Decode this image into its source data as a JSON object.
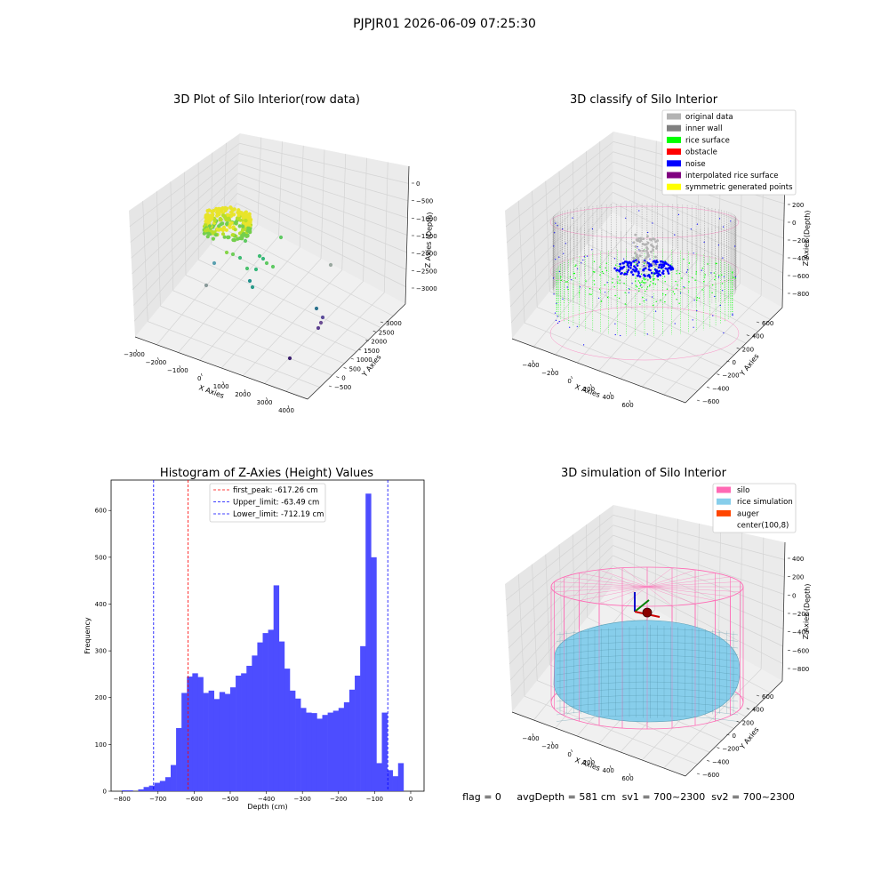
{
  "suptitle": "PJPJR01 2026-06-09 07:25:30",
  "footer": "flag = 0     avgDepth = 581 cm  sv1 = 700~2300  sv2 = 700~2300",
  "panels": {
    "raw": {
      "title": "3D Plot of Silo Interior(row data)",
      "xlabel": "X Axies",
      "ylabel": "Y Axies",
      "zlabel": "Z Axies (Depth)",
      "xticks": [
        "−3000",
        "−2000",
        "−1000",
        "0",
        "1000",
        "2000",
        "3000",
        "4000"
      ],
      "yticks": [
        "−500",
        "0",
        "500",
        "1000",
        "1500",
        "2000",
        "2500",
        "3000"
      ],
      "zticks": [
        "0",
        "−500",
        "−1000",
        "−1500",
        "−2000",
        "−2500",
        "−3000"
      ]
    },
    "classify": {
      "title": "3D classify of Silo Interior",
      "xlabel": "X Axies",
      "ylabel": "Y Axies",
      "zlabel": "Z Axies (Depth)",
      "xticks": [
        "−400",
        "−200",
        "0",
        "200",
        "400",
        "600"
      ],
      "yticks": [
        "−600",
        "−400",
        "−200",
        "0",
        "200",
        "400",
        "600"
      ],
      "zticks": [
        "200",
        "0",
        "−200",
        "−400",
        "−600",
        "−800"
      ],
      "legend": [
        {
          "label": "original data",
          "color": "#b3b3b3"
        },
        {
          "label": "inner wall",
          "color": "#808080"
        },
        {
          "label": "rice surface",
          "color": "#00ff00"
        },
        {
          "label": "obstacle",
          "color": "#ff0000"
        },
        {
          "label": "noise",
          "color": "#0000ff"
        },
        {
          "label": "interpolated rice surface",
          "color": "#800080"
        },
        {
          "label": "symmetric generated points",
          "color": "#ffff00"
        }
      ],
      "colors": {
        "wall": "#808080",
        "rice": "#00ff00",
        "noise": "#0000ff",
        "silo": "#ff69b4"
      }
    },
    "simulation": {
      "title": "3D simulation of Silo Interior",
      "xlabel": "X Axies",
      "ylabel": "Y Axies",
      "zlabel": "Z Axies (Depth)",
      "xticks": [
        "−400",
        "−200",
        "0",
        "200",
        "400",
        "600"
      ],
      "yticks": [
        "−600",
        "−400",
        "−200",
        "0",
        "200",
        "400",
        "600"
      ],
      "zticks": [
        "400",
        "200",
        "0",
        "−200",
        "−400",
        "−600",
        "−800"
      ],
      "legend": [
        {
          "label": "silo",
          "color": "#ff69b4"
        },
        {
          "label": "rice simulation",
          "color": "#87ceeb"
        },
        {
          "label": "auger",
          "color": "#ff4500"
        },
        {
          "label": "center(100,8)",
          "color": "#ffffff"
        }
      ]
    }
  },
  "chart_data": {
    "type": "bar",
    "title": "Histogram of Z-Axies (Height) Values",
    "xlabel": "Depth (cm)",
    "ylabel": "Frequency",
    "xlim": [
      -830,
      37
    ],
    "ylim": [
      0,
      665
    ],
    "bar_color": "#4d4dff",
    "bin_start": -800,
    "bin_width": 15,
    "values": [
      2,
      2,
      0,
      4,
      9,
      12,
      18,
      22,
      30,
      56,
      135,
      210,
      245,
      252,
      244,
      210,
      215,
      197,
      212,
      208,
      222,
      247,
      252,
      268,
      290,
      318,
      338,
      345,
      440,
      320,
      262,
      215,
      198,
      178,
      168,
      167,
      155,
      163,
      168,
      172,
      178,
      190,
      217,
      247,
      310,
      636,
      500,
      60,
      168,
      45,
      32,
      60
    ],
    "xticks": [
      -800,
      -700,
      -600,
      -500,
      -400,
      -300,
      -200,
      -100,
      0
    ],
    "yticks": [
      0,
      100,
      200,
      300,
      400,
      500,
      600
    ],
    "vlines": [
      {
        "label": "first_peak: -617.26 cm",
        "x": -617.26,
        "color": "#ff0000"
      },
      {
        "label": "Upper_limit: -63.49 cm",
        "x": -63.49,
        "color": "#0000ff"
      },
      {
        "label": "Lower_limit: -712.19 cm",
        "x": -712.19,
        "color": "#0000ff"
      }
    ]
  }
}
